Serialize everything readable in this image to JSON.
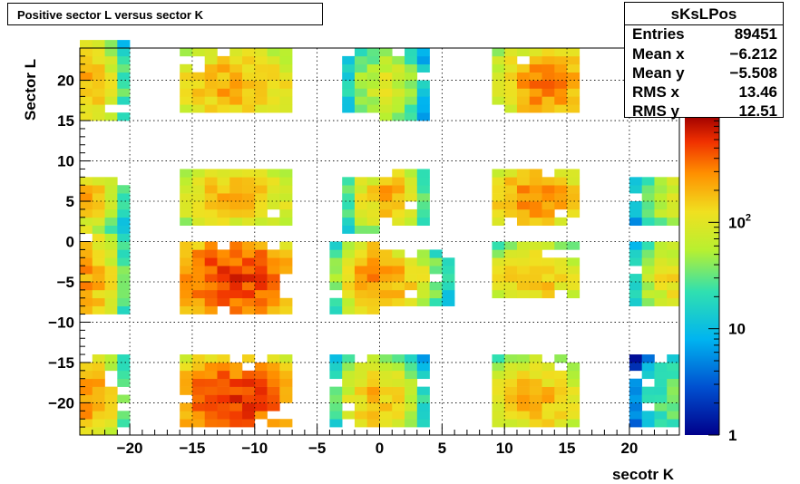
{
  "title": "Positive sector L versus sector K",
  "stats": {
    "name": "sKsLPos",
    "rows": [
      {
        "key": "Entries",
        "value": "89451"
      },
      {
        "key": "Mean x",
        "value": "−6.212"
      },
      {
        "key": "Mean y",
        "value": "−5.508"
      },
      {
        "key": "RMS x",
        "value": "13.46"
      },
      {
        "key": "RMS y",
        "value": "12.51"
      }
    ]
  },
  "chart_data": {
    "type": "heatmap",
    "title": "Positive sector L versus sector K",
    "xlabel": "secotr K",
    "ylabel": "Sector L",
    "xlim": [
      -24,
      24
    ],
    "ylim": [
      -24,
      24
    ],
    "bin_width": 1,
    "z_scale": "log",
    "zlim": [
      1,
      1000
    ],
    "palette": "rainbow",
    "grid": true,
    "x_ticks": [
      {
        "value": -20,
        "label": "−20"
      },
      {
        "value": -15,
        "label": "−15"
      },
      {
        "value": -10,
        "label": "−10"
      },
      {
        "value": -5,
        "label": "−5"
      },
      {
        "value": 0,
        "label": "0"
      },
      {
        "value": 5,
        "label": "5"
      },
      {
        "value": 10,
        "label": "10"
      },
      {
        "value": 15,
        "label": "15"
      },
      {
        "value": 20,
        "label": "20"
      }
    ],
    "y_ticks": [
      {
        "value": -20,
        "label": "−20"
      },
      {
        "value": -15,
        "label": "−15"
      },
      {
        "value": -10,
        "label": "−10"
      },
      {
        "value": -5,
        "label": "−5"
      },
      {
        "value": 0,
        "label": "0"
      },
      {
        "value": 5,
        "label": "5"
      },
      {
        "value": 10,
        "label": "10"
      },
      {
        "value": 15,
        "label": "15"
      },
      {
        "value": 20,
        "label": "20"
      }
    ],
    "z_ticks": [
      {
        "value": 1,
        "label": "1"
      },
      {
        "value": 10,
        "label": "10"
      },
      {
        "value": 100,
        "label": "10",
        "exponent": "2"
      }
    ],
    "clusters_note_free": true,
    "clusters": [
      {
        "x": [
          -24,
          -21
        ],
        "y": [
          -24,
          -15
        ],
        "peak_z": 300,
        "peak": [
          -24,
          -20
        ]
      },
      {
        "x": [
          -24,
          -21
        ],
        "y": [
          -9,
          1
        ],
        "peak_z": 260,
        "peak": [
          -24,
          -5
        ]
      },
      {
        "x": [
          -24,
          -21
        ],
        "y": [
          2,
          7
        ],
        "peak_z": 200,
        "peak": [
          -24,
          5
        ]
      },
      {
        "x": [
          -24,
          -21
        ],
        "y": [
          15,
          24
        ],
        "peak_z": 220,
        "peak": [
          -24,
          19
        ]
      },
      {
        "x": [
          -16,
          -8
        ],
        "y": [
          -23,
          -15
        ],
        "peak_z": 600,
        "peak": [
          -12,
          -20
        ]
      },
      {
        "x": [
          -16,
          -8
        ],
        "y": [
          -9,
          -1
        ],
        "peak_z": 600,
        "peak": [
          -12,
          -5
        ]
      },
      {
        "x": [
          -16,
          -8
        ],
        "y": [
          2,
          8
        ],
        "peak_z": 200,
        "peak": [
          -12,
          5
        ]
      },
      {
        "x": [
          -16,
          -8
        ],
        "y": [
          16,
          23
        ],
        "peak_z": 250,
        "peak": [
          -12,
          19
        ]
      },
      {
        "x": [
          -4,
          -1
        ],
        "y": [
          -23,
          -15
        ],
        "peak_z": 200,
        "peak": [
          -1,
          -20
        ]
      },
      {
        "x": [
          -4,
          -1
        ],
        "y": [
          -9,
          -1
        ],
        "peak_z": 300,
        "peak": [
          -1,
          -5
        ]
      },
      {
        "x": [
          -3,
          -1
        ],
        "y": [
          1,
          7
        ],
        "peak_z": 150,
        "peak": [
          -1,
          5
        ]
      },
      {
        "x": [
          -3,
          -1
        ],
        "y": [
          16,
          23
        ],
        "peak_z": 80,
        "peak": [
          -1,
          19
        ]
      },
      {
        "x": [
          0,
          3
        ],
        "y": [
          -23,
          -15
        ],
        "peak_z": 150,
        "peak": [
          0,
          -20
        ]
      },
      {
        "x": [
          0,
          5
        ],
        "y": [
          -8,
          -2
        ],
        "peak_z": 250,
        "peak": [
          0,
          -5
        ]
      },
      {
        "x": [
          0,
          3
        ],
        "y": [
          2,
          8
        ],
        "peak_z": 250,
        "peak": [
          0,
          5
        ]
      },
      {
        "x": [
          0,
          3
        ],
        "y": [
          15,
          23
        ],
        "peak_z": 100,
        "peak": [
          0,
          19
        ]
      },
      {
        "x": [
          9,
          15
        ],
        "y": [
          -23,
          -15
        ],
        "peak_z": 200,
        "peak": [
          12,
          -20
        ]
      },
      {
        "x": [
          9,
          15
        ],
        "y": [
          -7,
          -1
        ],
        "peak_z": 200,
        "peak": [
          12,
          -5
        ]
      },
      {
        "x": [
          9,
          15
        ],
        "y": [
          2,
          8
        ],
        "peak_z": 300,
        "peak": [
          12,
          5
        ]
      },
      {
        "x": [
          9,
          15
        ],
        "y": [
          16,
          23
        ],
        "peak_z": 350,
        "peak": [
          13,
          19
        ]
      },
      {
        "x": [
          20,
          23
        ],
        "y": [
          -23,
          -15
        ],
        "peak_z": 40,
        "peak": [
          23,
          -20
        ]
      },
      {
        "x": [
          20,
          23
        ],
        "y": [
          -8,
          -1
        ],
        "peak_z": 150,
        "peak": [
          23,
          -5
        ]
      },
      {
        "x": [
          20,
          23
        ],
        "y": [
          2,
          7
        ],
        "peak_z": 100,
        "peak": [
          23,
          5
        ]
      }
    ]
  }
}
